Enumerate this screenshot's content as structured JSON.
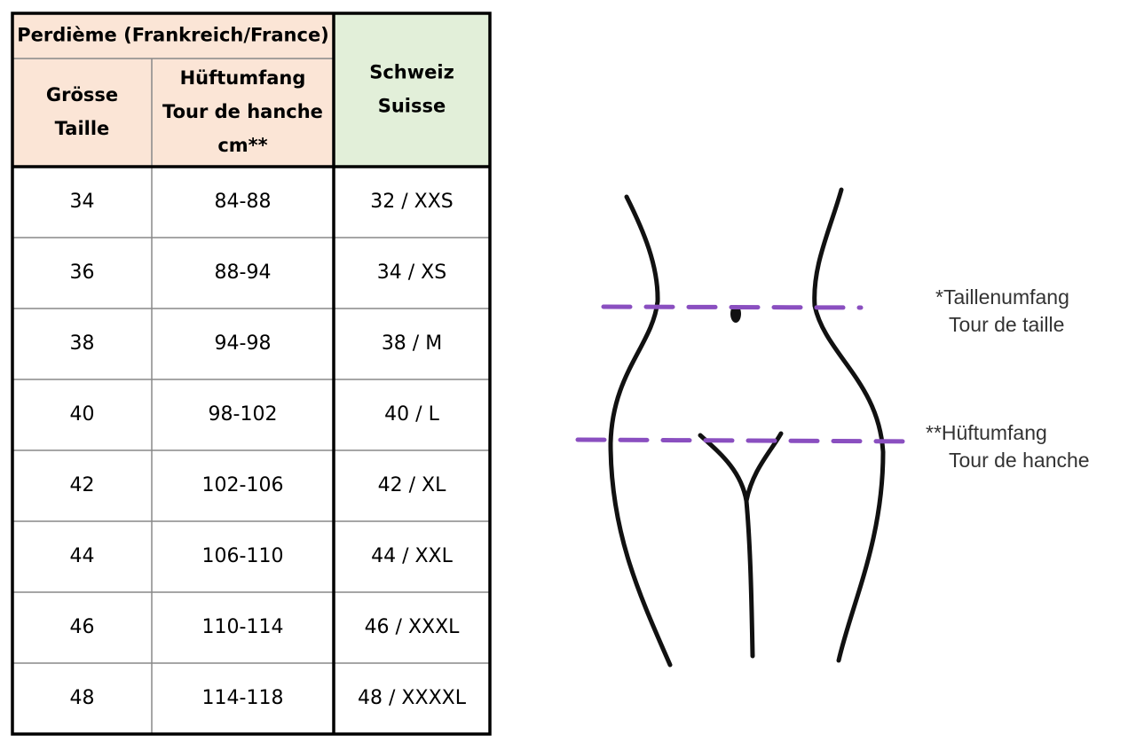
{
  "table": {
    "group_header": "Perdième (Frankreich/France)",
    "headers": [
      [
        "Grösse",
        "Taille"
      ],
      [
        "Hüftumfang",
        "Tour de hanche",
        "cm**"
      ],
      [
        "Schweiz",
        "Suisse"
      ]
    ],
    "rows": [
      [
        "34",
        "84-88",
        "32 / XXS"
      ],
      [
        "36",
        "88-94",
        "34 / XS"
      ],
      [
        "38",
        "94-98",
        "38 / M"
      ],
      [
        "40",
        "98-102",
        "40 / L"
      ],
      [
        "42",
        "102-106",
        "42 / XL"
      ],
      [
        "44",
        "106-110",
        "44 / XXL"
      ],
      [
        "46",
        "110-114",
        "46 / XXXL"
      ],
      [
        "48",
        "114-118",
        "48 / XXXXL"
      ]
    ]
  },
  "illustration": {
    "waist_label": [
      "*Taillenumfang",
      "Tour de taille"
    ],
    "hip_label": [
      "**Hüftumfang",
      "Tour de hanche"
    ]
  }
}
